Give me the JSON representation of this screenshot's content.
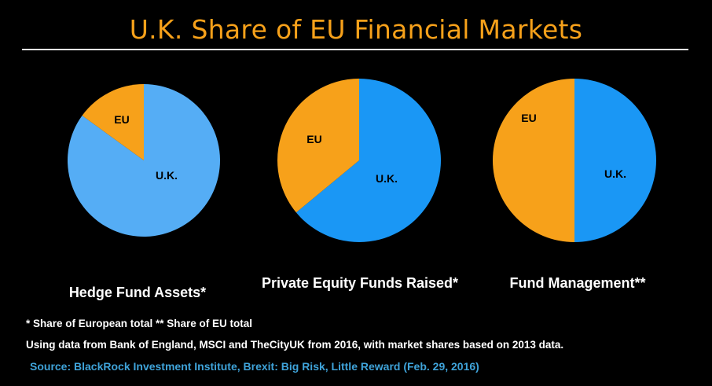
{
  "title": "U.K. Share of EU Financial Markets",
  "footnote": "* Share of European total ** Share of EU total",
  "note": "Using data from Bank of England, MSCI and TheCityUK from 2016, with market shares based on 2013 data.",
  "source": "Source: BlackRock Investment Institute, Brexit: Big Risk, Little Reward (Feb. 29, 2016)",
  "colors": {
    "title": "#f7a11a",
    "eu": "#f7a11a",
    "source": "#3fa3d9"
  },
  "chart_data": [
    {
      "type": "pie",
      "title": "Hedge Fund Assets*",
      "categories": [
        "U.K.",
        "EU"
      ],
      "values": [
        85,
        15
      ],
      "colors": [
        "#55adf5",
        "#f7a11a"
      ]
    },
    {
      "type": "pie",
      "title": "Private Equity Funds Raised*",
      "categories": [
        "U.K.",
        "EU"
      ],
      "values": [
        64,
        36
      ],
      "colors": [
        "#1a97f5",
        "#f7a11a"
      ]
    },
    {
      "type": "pie",
      "title": "Fund Management**",
      "categories": [
        "U.K.",
        "EU"
      ],
      "values": [
        50,
        50
      ],
      "colors": [
        "#1a97f5",
        "#f7a11a"
      ]
    }
  ]
}
